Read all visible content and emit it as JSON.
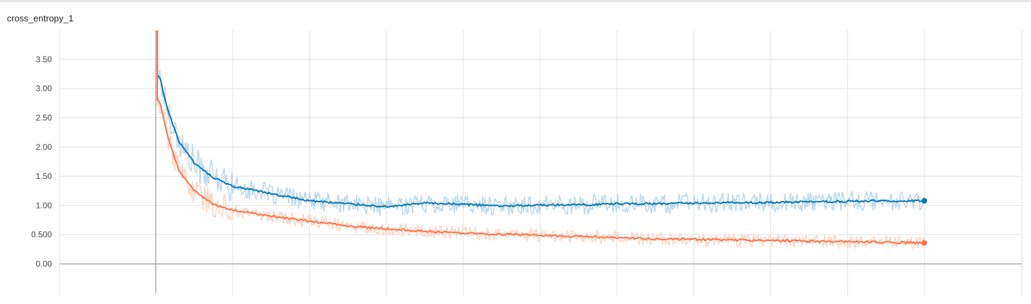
{
  "card": {
    "title": "cross_entropy_1"
  },
  "chart_data": {
    "type": "line",
    "title": "cross_entropy_1",
    "xlabel": "",
    "ylabel": "",
    "ylim": [
      -0.5,
      3.95
    ],
    "yticks": [
      "0.00",
      "0.500",
      "1.00",
      "1.50",
      "2.00",
      "2.50",
      "3.00",
      "3.50"
    ],
    "ytick_values": [
      0,
      0.5,
      1.0,
      1.5,
      2.0,
      2.5,
      3.0,
      3.5
    ],
    "xlim": [
      0,
      10
    ],
    "x_gridlines": [
      0,
      1,
      2,
      3,
      4,
      5,
      6,
      7,
      8,
      9,
      10
    ],
    "grid": true,
    "legend": "none",
    "series": [
      {
        "color": "#0077bb",
        "raw_color": "#bcd9ea",
        "x": [
          0.05,
          0.15,
          0.3,
          0.5,
          0.75,
          1.0,
          1.5,
          2.0,
          2.5,
          3.0,
          3.5,
          4.0,
          4.5,
          5.0,
          5.5,
          6.0,
          6.5,
          7.0,
          7.5,
          8.0,
          8.5,
          9.0,
          9.5,
          10.0
        ],
        "y": [
          3.2,
          2.65,
          2.1,
          1.72,
          1.47,
          1.33,
          1.2,
          1.08,
          1.03,
          0.98,
          1.04,
          1.02,
          0.99,
          1.01,
          1.01,
          1.03,
          1.03,
          1.04,
          1.05,
          1.05,
          1.06,
          1.07,
          1.08,
          1.08
        ]
      },
      {
        "color": "#ff7043",
        "raw_color": "#fdd6c9",
        "x": [
          0.05,
          0.15,
          0.3,
          0.5,
          0.75,
          1.0,
          1.5,
          2.0,
          2.5,
          3.0,
          3.5,
          4.0,
          4.5,
          5.0,
          5.5,
          6.0,
          6.5,
          7.0,
          7.5,
          8.0,
          8.5,
          9.0,
          9.5,
          10.0
        ],
        "y": [
          2.8,
          2.2,
          1.6,
          1.25,
          1.02,
          0.92,
          0.82,
          0.73,
          0.65,
          0.6,
          0.56,
          0.53,
          0.51,
          0.49,
          0.47,
          0.45,
          0.43,
          0.42,
          0.41,
          0.4,
          0.39,
          0.38,
          0.37,
          0.36
        ]
      }
    ]
  }
}
